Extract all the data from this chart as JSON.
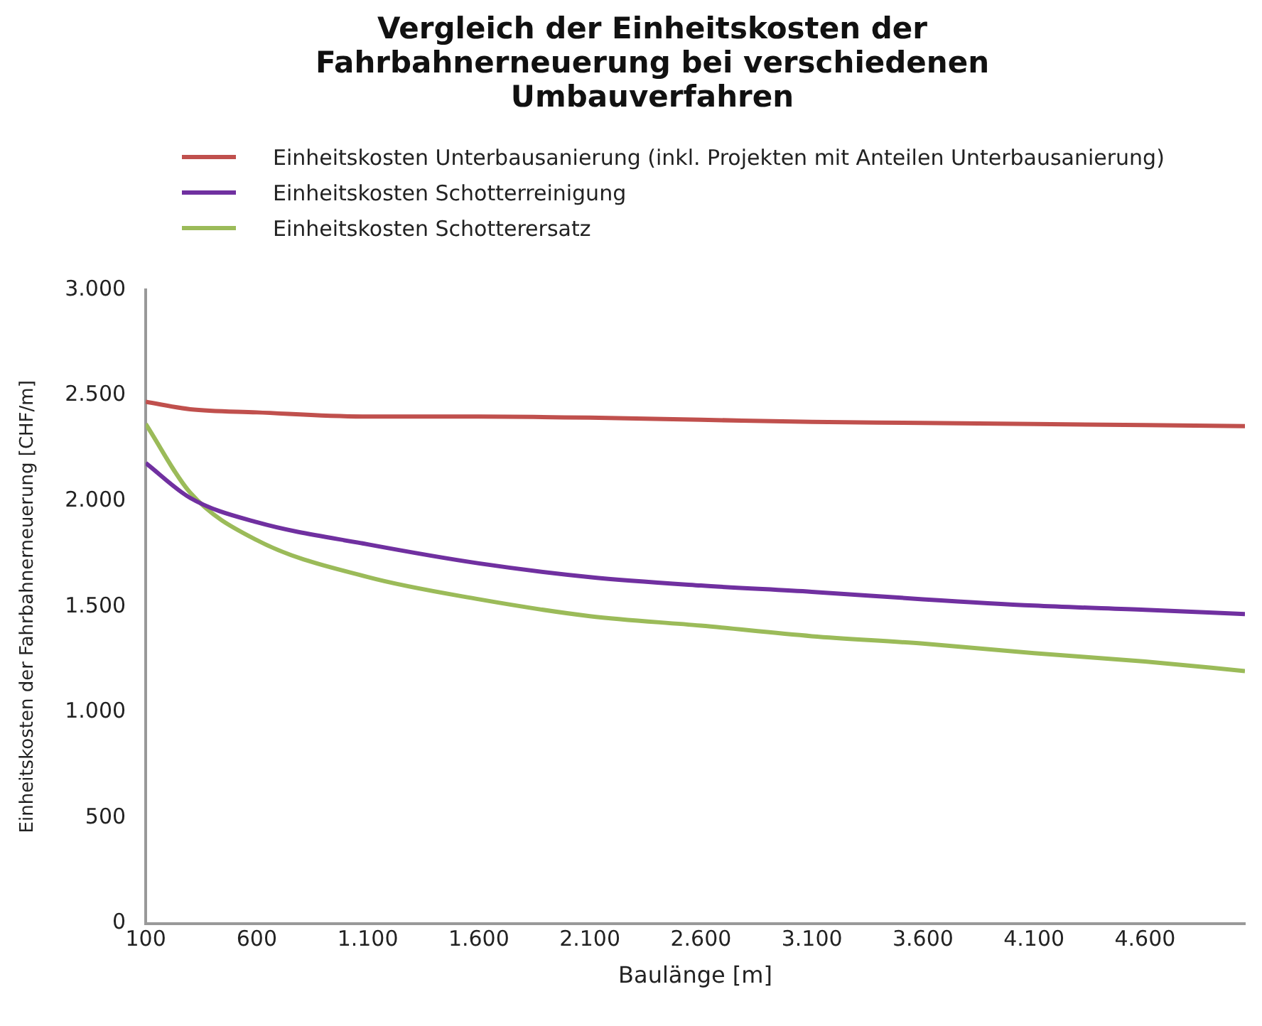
{
  "chart_data": {
    "type": "line",
    "title": "Vergleich der Einheitskosten der Fahrbahnerneuerung bei verschiedenen Umbauverfahren",
    "xlabel": "Baulänge [m]",
    "ylabel": "Einheitskosten der Fahrbahnerneuerung [CHF/m]",
    "series": [
      {
        "name": "Einheitskosten Unterbausanierung (inkl. Projekten mit Anteilen Unterbausanierung)",
        "color": "#c0504d",
        "x": [
          100,
          300,
          600,
          1100,
          1600,
          2100,
          2600,
          3100,
          3600,
          4100,
          4600,
          5050
        ],
        "values": [
          2470,
          2435,
          2420,
          2400,
          2400,
          2395,
          2385,
          2375,
          2370,
          2365,
          2360,
          2355
        ]
      },
      {
        "name": "Einheitskosten Schotterreinigung",
        "color": "#7030a0",
        "x": [
          100,
          300,
          600,
          1100,
          1600,
          2100,
          2600,
          3100,
          3600,
          4100,
          4600,
          5050
        ],
        "values": [
          2180,
          2015,
          1900,
          1795,
          1705,
          1640,
          1600,
          1570,
          1535,
          1505,
          1485,
          1465
        ]
      },
      {
        "name": "Einheitskosten Schotterersatz",
        "color": "#9bbb59",
        "x": [
          100,
          300,
          600,
          1100,
          1600,
          2100,
          2600,
          3100,
          3600,
          4100,
          4600,
          5050
        ],
        "values": [
          2365,
          2040,
          1815,
          1640,
          1535,
          1455,
          1410,
          1360,
          1325,
          1280,
          1240,
          1195
        ]
      }
    ],
    "xlim": [
      100,
      5050
    ],
    "xticks": [
      100,
      600,
      {
        "value": 1100,
        "label": "1.100"
      },
      {
        "value": 1600,
        "label": "1.600"
      },
      {
        "value": 2100,
        "label": "2.100"
      },
      {
        "value": 2600,
        "label": "2.600"
      },
      {
        "value": 3100,
        "label": "3.100"
      },
      {
        "value": 3600,
        "label": "3.600"
      },
      {
        "value": 4100,
        "label": "4.100"
      },
      {
        "value": 4600,
        "label": "4.600"
      }
    ],
    "ylim": [
      0,
      3000
    ],
    "yticks": [
      0,
      500,
      {
        "value": 1000,
        "label": "1.000"
      },
      {
        "value": 1500,
        "label": "1.500"
      },
      {
        "value": 2000,
        "label": "2.000"
      },
      {
        "value": 2500,
        "label": "2.500"
      },
      {
        "value": 3000,
        "label": "3.000"
      }
    ],
    "grid": false,
    "legend": "top",
    "marker": "none",
    "line_style": "solid"
  }
}
